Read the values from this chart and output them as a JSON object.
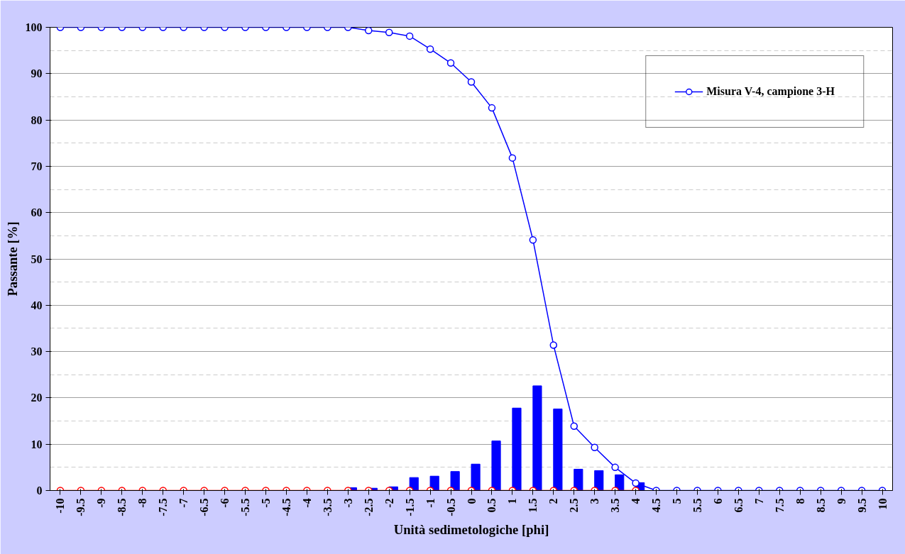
{
  "chart_data": {
    "type": "bar",
    "xlabel": "Unità sedimetologiche [phi]",
    "ylabel": "Passante [%]",
    "categories": [
      "-10",
      "-9.5",
      "-9",
      "-8.5",
      "-8",
      "-7.5",
      "-7",
      "-6.5",
      "-6",
      "-5.5",
      "-5",
      "-4.5",
      "-4",
      "-3.5",
      "-3",
      "-2.5",
      "-2",
      "-1.5",
      "-1",
      "-0.5",
      "0",
      "0.5",
      "1",
      "1.5",
      "2",
      "2.5",
      "3",
      "3.5",
      "4",
      "4.5",
      "5",
      "5.5",
      "6",
      "6.5",
      "7",
      "7.5",
      "8",
      "8.5",
      "9",
      "9.5",
      "10"
    ],
    "series": [
      {
        "color": "#0000ff",
        "values": [
          0,
          0,
          0,
          0,
          0,
          0,
          0,
          0,
          0,
          0,
          0,
          0,
          0,
          0,
          0.6,
          0.5,
          0.8,
          2.8,
          3.1,
          4.1,
          5.7,
          10.7,
          17.8,
          22.6,
          17.6,
          4.6,
          4.3,
          3.4,
          1.7,
          0,
          0,
          0,
          0,
          0,
          0,
          0,
          0,
          0,
          0,
          0,
          0
        ]
      },
      {
        "type": "line",
        "name": "Misura V-4, campione 3-H",
        "color": "#0000ff",
        "marker": "circle",
        "values": [
          100,
          100,
          100,
          100,
          100,
          100,
          100,
          100,
          100,
          100,
          100,
          100,
          100,
          100,
          100,
          99.3,
          98.9,
          98.1,
          95.3,
          92.3,
          88.2,
          82.6,
          71.8,
          54.1,
          31.4,
          13.9,
          9.3,
          5.0,
          1.6,
          0,
          0,
          0,
          0,
          0,
          0,
          0,
          0,
          0,
          0,
          0,
          0
        ]
      },
      {
        "type": "line",
        "color": "#ff0000",
        "marker": "circle",
        "values": [
          0,
          0,
          0,
          0,
          0,
          0,
          0,
          0,
          0,
          0,
          0,
          0,
          0,
          0,
          0,
          0,
          0,
          0,
          0,
          0,
          0,
          0,
          0,
          0,
          0,
          0,
          0,
          0,
          0,
          null,
          null,
          null,
          null,
          null,
          null,
          null,
          null,
          null,
          null,
          null,
          null
        ]
      }
    ],
    "ylim": [
      0,
      100
    ],
    "yticks": [
      0,
      10,
      20,
      30,
      40,
      50,
      60,
      70,
      80,
      90,
      100
    ],
    "grid": "y",
    "legend": "top right"
  }
}
